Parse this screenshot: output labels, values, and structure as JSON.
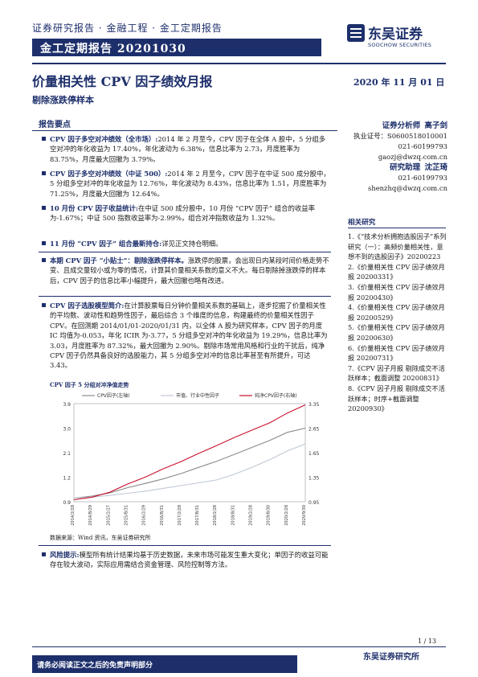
{
  "header": {
    "series_line": "证券研究报告 · 金融工程 · 金工定期报告",
    "report_bar": "金工定期报告 20201030",
    "logo_cn": "东吴证券",
    "logo_en": "SOOCHOW SECURITIES"
  },
  "title": "价量相关性 CPV 因子绩效月报",
  "date": "2020 年 11 月 01 日",
  "subtitle": "剔除涨跌停样本",
  "section_head": "报告要点",
  "points": [
    {
      "lead": "CPV 因子多空对冲绩效（全市场）:",
      "text": "2014 年 2 月至今，CPV 因子在全体 A 股中，5 分组多空对冲的年化收益为 17.40%，年化波动为 6.38%，信息比率为 2.73，月度胜率为 83.75%，月度最大回撤为 3.79%。"
    },
    {
      "lead": "CPV 因子多空对冲绩效（中证 500）:",
      "text": "2014 年 2 月至今，CPV 因子在中证 500 成分股中，5 分组多空对冲的年化收益为 12.76%，年化波动为 8.43%，信息比率为 1.51，月度胜率为 71.25%，月度最大回撤为 12.64%。"
    },
    {
      "lead": "10 月份 CPV 因子收益统计:",
      "text": "在中证 500 成分股中，10 月份 “CPV 因子” 组合的收益率为-1.67%；中证 500 指数收益率为-2.99%，组合对冲指数收益为 1.32%。"
    },
    {
      "lead": "11 月份 “CPV 因子” 组合最新持仓:",
      "text": "详见正文持仓明细。"
    },
    {
      "lead": "本期 CPV 因子 “小贴士”：剔除涨跌停样本。",
      "text": "涨跌停的股票，会出现日内某段时间价格走势不变、且成交量较小或为零的情况，计算其价量相关系数的意义不大。每日剔除掉涨跌停的样本后，CPV 因子的信息比率小幅提升，最大回撤也略有改进。"
    },
    {
      "lead": "CPV 因子选股模型简介:",
      "text": "在计算股票每日分钟价量相关系数的基础上，逐步挖掘了价量相关性的平均数、波动性和趋势性因子，最后综合 3 个维度的信息，构建最终的价量相关性因子 CPV。在回测期 2014/01/01-2020/01/31 内，以全体 A 股为研究样本，CPV 因子的月度 IC 均值为-0.053，年化 ICIR 为-3.77，5 分组多空对冲的年化收益为 19.29%，信息比率为 3.03，月度胜率为 87.32%，最大回撤为 2.90%。剔除市场常用风格和行业的干扰后，纯净 CPV 因子仍然具备良好的选股能力，其 5 分组多空对冲的信息比率甚至有所提升，可达 3.43。"
    }
  ],
  "risk": {
    "lead": "风险提示:",
    "text": "模型所有统计结果均基于历史数据，未来市场可能发生重大变化；单因子的收益可能存在较大波动，实际应用需结合资金管理、风险控制等方法。"
  },
  "analyst": {
    "role1": "证券分析师",
    "name1": "高子剑",
    "cert": "执业证号：S0600518010001",
    "phone1": "021-60199793",
    "email1": "gaozj@dwzq.com.cn",
    "role2": "研究助理",
    "name2": "沈芷琦",
    "phone2": "021-60199793",
    "email2": "shenzhq@dwzq.com.cn"
  },
  "related": {
    "head": "相关研究",
    "items": [
      "1.《“技术分析拥抱选股因子”系列研究（一）：高频价量相关性，意想不到的选股因子》20200223",
      "2.《价量相关性 CPV 因子绩效月报 20200331》",
      "3.《价量相关性 CPV 因子绩效月报 20200430》",
      "4.《价量相关性 CPV 因子绩效月报 20200529》",
      "5.《价量相关性 CPV 因子绩效月报 20200630》",
      "6.《价量相关性 CPV 因子绩效月报 20200731》",
      "7.《CPV 因子月报 剔除成交不活跃样本；截面调整 20200831》",
      "8.《CPV 因子月报 剔除成交不活跃样本；时序+截面调整 20200930》"
    ]
  },
  "chart_data": {
    "type": "line",
    "title": "CPV 因子 5 分组对冲净值走势",
    "x": [
      "2014-02-28",
      "2014-08-29",
      "2015-02-27",
      "2015-08-31",
      "2016-02-29",
      "2016-08-31",
      "2017-02-28",
      "2017-08-31",
      "2018-02-28",
      "2018-08-31",
      "2019-02-28",
      "2019-08-30",
      "2020-02-28",
      "2020-09-30"
    ],
    "x_ticks": [
      "2014/2/28",
      "2014/8/29",
      "2015/2/27",
      "2015/8/31",
      "2016/2/29",
      "2016/8/31",
      "2017/2/28",
      "2017/8/31",
      "2018/2/28",
      "2018/8/31",
      "2019/2/28",
      "2019/8/30",
      "2020/2/28",
      "2020/9/30"
    ],
    "series": [
      {
        "name": "CPV因子(左轴)",
        "axis": "left",
        "color": "#8a8a8a",
        "values": [
          1.0,
          1.06,
          1.15,
          1.3,
          1.42,
          1.55,
          1.7,
          1.88,
          2.05,
          2.25,
          2.45,
          2.65,
          2.88,
          3.0
        ]
      },
      {
        "name": "市值、行业中性因子",
        "axis": "left",
        "color": "#c0c8d4",
        "values": [
          1.0,
          1.03,
          1.08,
          1.14,
          1.2,
          1.28,
          1.36,
          1.44,
          1.52,
          1.68,
          1.88,
          2.1,
          2.35,
          2.55
        ]
      },
      {
        "name": "纯净CPV因子(右轴)",
        "axis": "right",
        "color": "#c8102e",
        "values": [
          1.0,
          1.06,
          1.18,
          1.38,
          1.55,
          1.75,
          1.93,
          2.13,
          2.32,
          2.52,
          2.7,
          2.88,
          3.12,
          3.32
        ]
      }
    ],
    "left_ticks": [
      "3.9",
      "3.0",
      "2.1",
      "1.2",
      "0.9"
    ],
    "right_ticks": [
      "3.35",
      "2.65",
      "1.65",
      "1.35",
      "0.95"
    ],
    "ylim_left": [
      0.9,
      3.7
    ],
    "ylim_right": [
      0.95,
      3.35
    ],
    "legend": "top",
    "source": "数据来源：Wind 资讯，东吴证券研究所"
  },
  "footer": {
    "page": "1 / 13",
    "disclaimer": "请务必阅读正文之后的免责声明部分",
    "institute": "东吴证券研究所"
  }
}
